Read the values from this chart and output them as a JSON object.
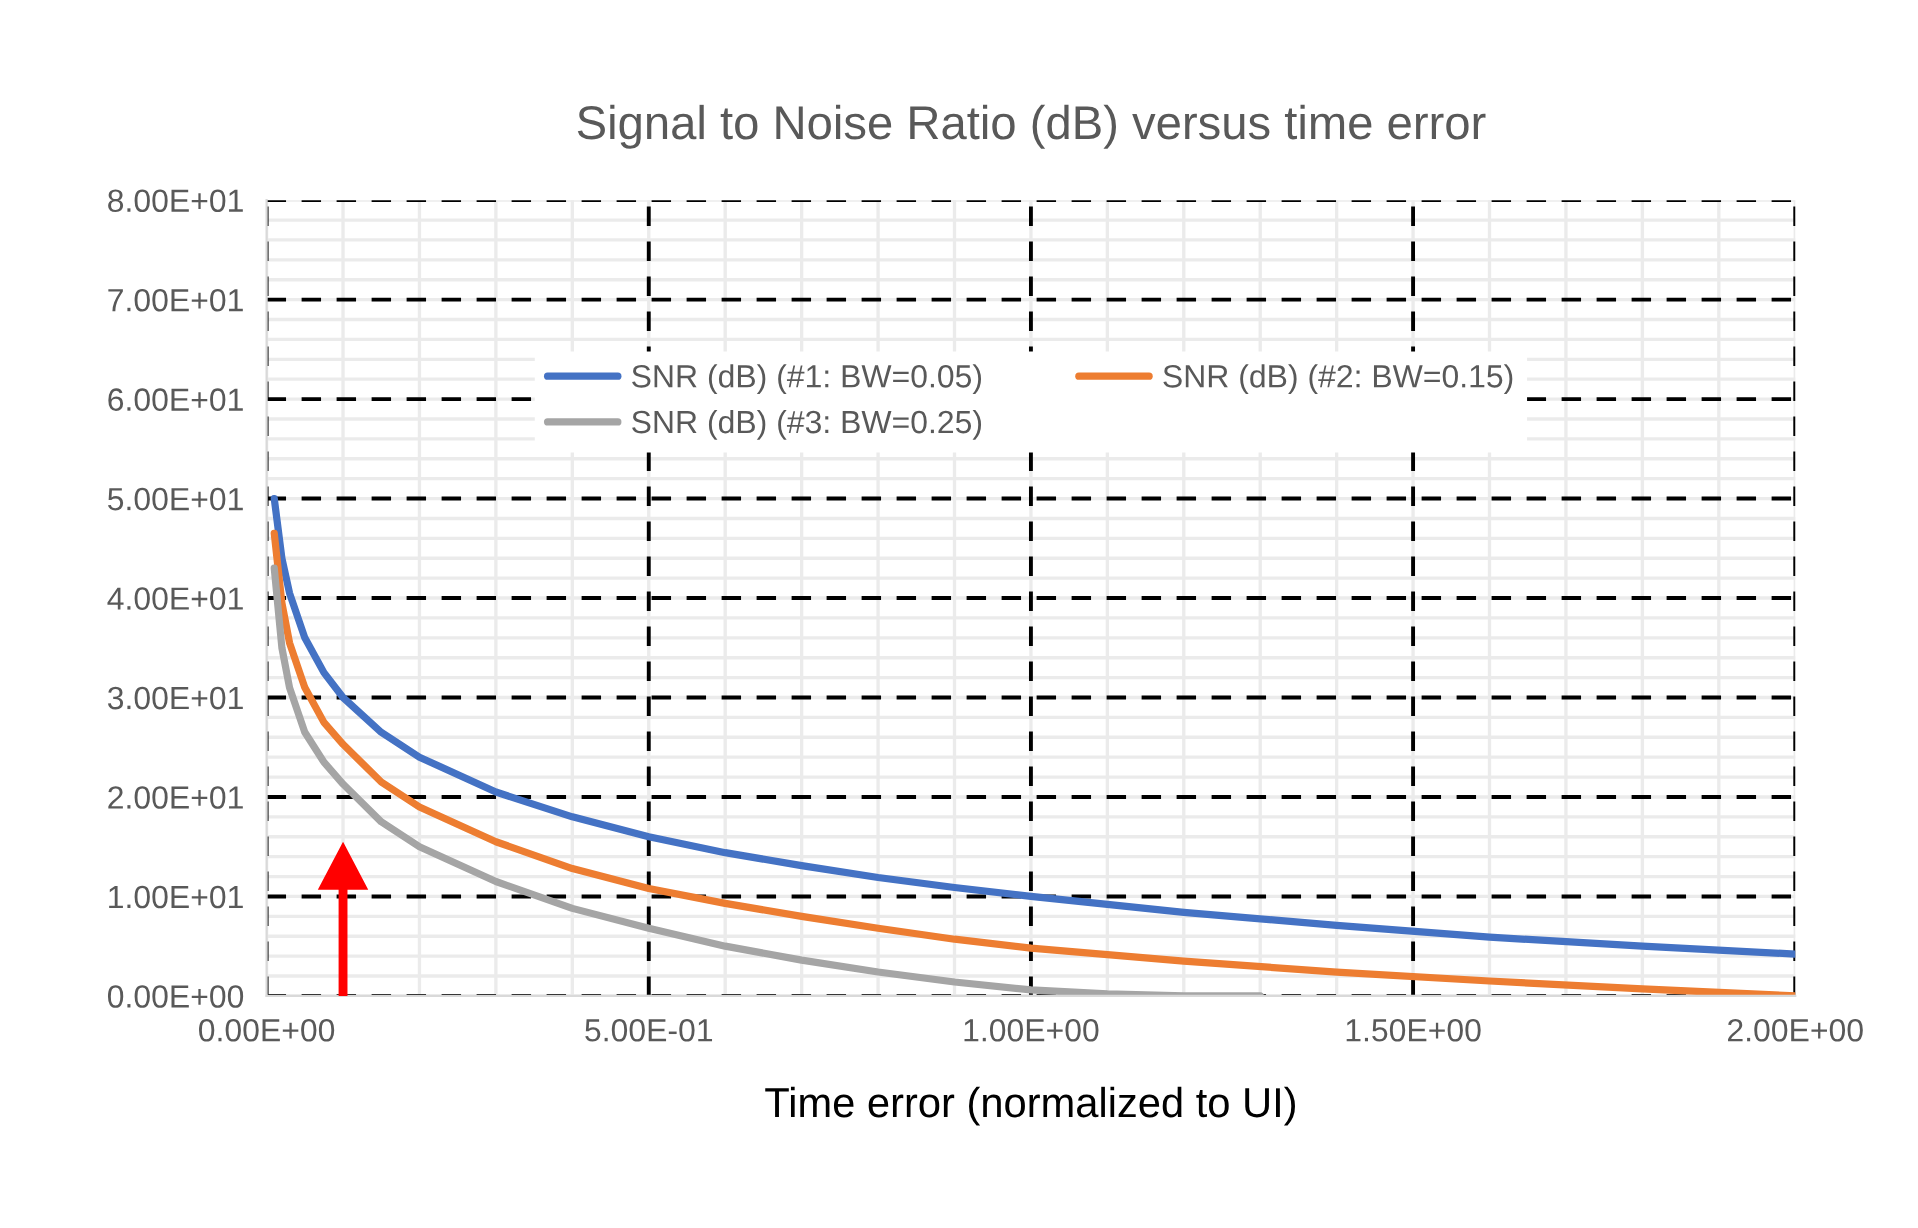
{
  "chart_data": {
    "type": "line",
    "title": "Signal to Noise Ratio (dB) versus time error",
    "xlabel": "Time error (normalized to UI)",
    "xlim": [
      0,
      2
    ],
    "ylim": [
      0,
      80
    ],
    "xticks": [
      {
        "value": 0,
        "label": "0.00E+00"
      },
      {
        "value": 0.5,
        "label": "5.00E-01"
      },
      {
        "value": 1,
        "label": "1.00E+00"
      },
      {
        "value": 1.5,
        "label": "1.50E+00"
      },
      {
        "value": 2,
        "label": "2.00E+00"
      }
    ],
    "yticks": [
      {
        "value": 0,
        "label": "0.00E+00"
      },
      {
        "value": 10,
        "label": "1.00E+01"
      },
      {
        "value": 20,
        "label": "2.00E+01"
      },
      {
        "value": 30,
        "label": "3.00E+01"
      },
      {
        "value": 40,
        "label": "4.00E+01"
      },
      {
        "value": 50,
        "label": "5.00E+01"
      },
      {
        "value": 60,
        "label": "6.00E+01"
      },
      {
        "value": 70,
        "label": "7.00E+01"
      },
      {
        "value": 80,
        "label": "8.00E+01"
      }
    ],
    "grid": true,
    "legend": "top",
    "marker": "none",
    "line_style": "solid",
    "series": [
      {
        "name": "SNR (dB) (#1: BW=0.05)",
        "color": "#4472c4",
        "x": [
          0.01,
          0.02,
          0.03,
          0.05,
          0.075,
          0.1,
          0.15,
          0.2,
          0.3,
          0.4,
          0.5,
          0.6,
          0.7,
          0.8,
          0.9,
          1.0,
          1.2,
          1.4,
          1.6,
          1.8,
          2.0
        ],
        "values": [
          50,
          44,
          40.5,
          36,
          32.5,
          30,
          26.5,
          24,
          20.5,
          18,
          16,
          14.4,
          13.1,
          11.9,
          10.9,
          10,
          8.4,
          7.1,
          5.9,
          5.0,
          4.2
        ]
      },
      {
        "name": "SNR (dB) (#2: BW=0.15)",
        "color": "#ed7d31",
        "x": [
          0.01,
          0.02,
          0.03,
          0.05,
          0.075,
          0.1,
          0.15,
          0.2,
          0.3,
          0.4,
          0.5,
          0.6,
          0.7,
          0.8,
          0.9,
          1.0,
          1.2,
          1.4,
          1.6,
          1.8,
          2.0
        ],
        "values": [
          46.5,
          39.5,
          35.5,
          31,
          27.5,
          25.3,
          21.5,
          19,
          15.5,
          12.8,
          10.8,
          9.3,
          8,
          6.8,
          5.7,
          4.8,
          3.5,
          2.4,
          1.5,
          0.7,
          0
        ]
      },
      {
        "name": "SNR (dB) (#3: BW=0.25)",
        "color": "#a5a5a5",
        "x": [
          0.01,
          0.02,
          0.03,
          0.05,
          0.075,
          0.1,
          0.15,
          0.2,
          0.3,
          0.4,
          0.5,
          0.6,
          0.7,
          0.8,
          0.9,
          1.0,
          1.1,
          1.2,
          1.3
        ],
        "values": [
          43,
          35,
          31,
          26.5,
          23.5,
          21.3,
          17.5,
          15,
          11.5,
          8.8,
          6.8,
          5,
          3.6,
          2.4,
          1.4,
          0.6,
          0.2,
          0,
          0
        ]
      }
    ]
  }
}
